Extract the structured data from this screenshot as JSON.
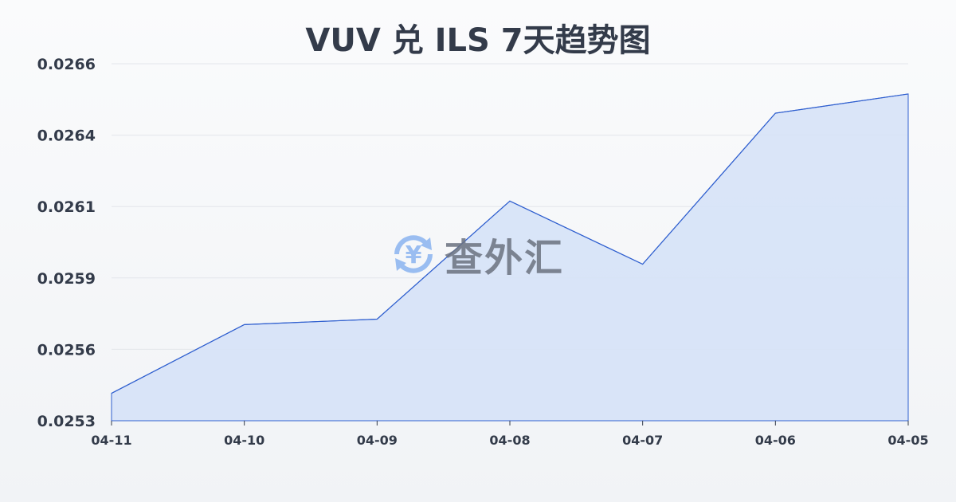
{
  "chart_data": {
    "type": "area",
    "title": "VUV 兑 ILS 7天趋势图",
    "categories": [
      "04-11",
      "04-10",
      "04-09",
      "04-08",
      "04-07",
      "04-06",
      "04-05"
    ],
    "values": [
      0.0254,
      0.02565,
      0.02567,
      0.0261,
      0.02587,
      0.02642,
      0.02649
    ],
    "ylim": [
      0.0253,
      0.0266
    ],
    "ytick_labels": [
      "0.0266",
      "0.0264",
      "0.0261",
      "0.0259",
      "0.0256",
      "0.0253"
    ],
    "grid": true,
    "line_color": "#2f5fcf",
    "fill_color": "#d6e2f7"
  },
  "watermark": {
    "text": "查外汇",
    "icon": "yen-exchange-icon"
  }
}
